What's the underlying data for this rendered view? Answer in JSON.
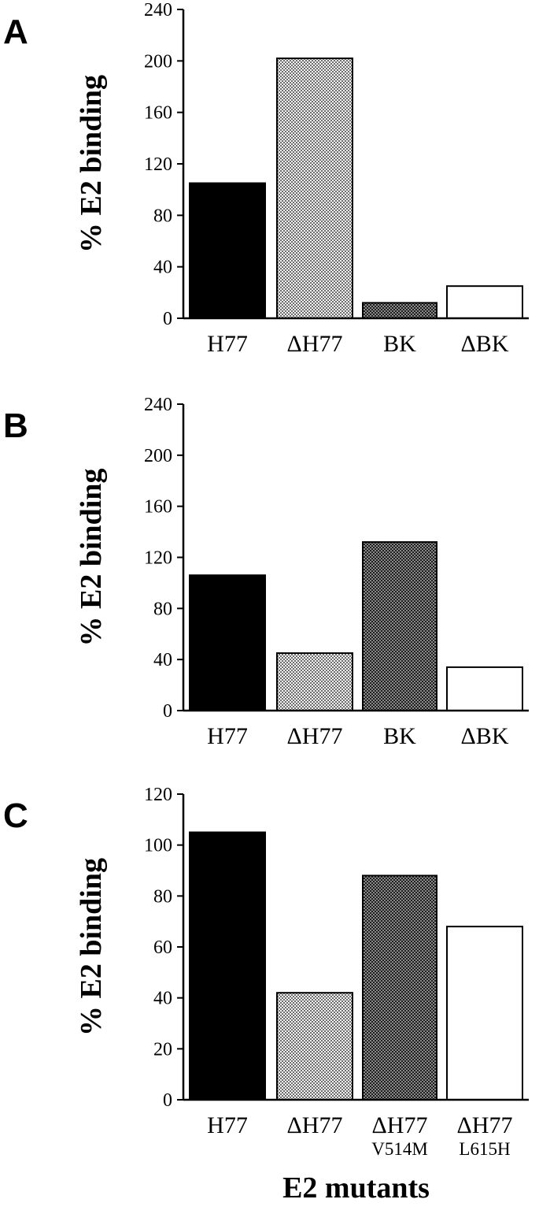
{
  "chart_data": [
    {
      "panel": "A",
      "type": "bar",
      "categories": [
        "H77",
        "ΔH77",
        "BK",
        "ΔBK"
      ],
      "values": [
        105,
        202,
        12,
        25
      ],
      "fills": [
        "solid-black",
        "light-stipple",
        "dark-stipple",
        "white"
      ],
      "ylabel": "% E2 binding",
      "xlabel": "",
      "ylim": [
        0,
        240
      ],
      "yticks": [
        0,
        40,
        80,
        120,
        160,
        200,
        240
      ]
    },
    {
      "panel": "B",
      "type": "bar",
      "categories": [
        "H77",
        "ΔH77",
        "BK",
        "ΔBK"
      ],
      "values": [
        106,
        45,
        132,
        34
      ],
      "fills": [
        "solid-black",
        "light-stipple",
        "dark-stipple",
        "white"
      ],
      "ylabel": "% E2 binding",
      "xlabel": "",
      "ylim": [
        0,
        240
      ],
      "yticks": [
        0,
        40,
        80,
        120,
        160,
        200,
        240
      ]
    },
    {
      "panel": "C",
      "type": "bar",
      "categories": [
        "H77",
        "ΔH77",
        "ΔH77",
        "ΔH77"
      ],
      "category_sublabels": [
        "",
        "",
        "V514M",
        "L615H"
      ],
      "values": [
        105,
        42,
        88,
        68
      ],
      "fills": [
        "solid-black",
        "light-stipple",
        "dark-stipple",
        "white"
      ],
      "ylabel": "% E2 binding",
      "xlabel": "E2 mutants",
      "ylim": [
        0,
        120
      ],
      "yticks": [
        0,
        20,
        40,
        60,
        80,
        100,
        120
      ]
    }
  ],
  "colors": {
    "ink": "#000000",
    "background": "#ffffff",
    "light_stipple": "#c8c8c8",
    "dark_stipple": "#5a5a5a"
  }
}
